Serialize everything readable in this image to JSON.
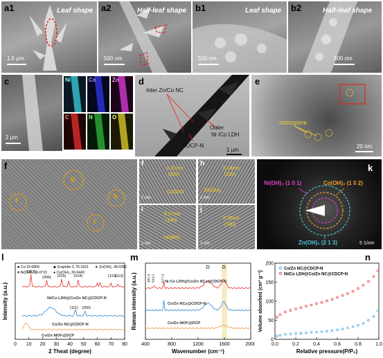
{
  "panels": {
    "a1": {
      "label": "a1",
      "caption": "Leaf shape",
      "scale": "1.5 μm"
    },
    "a2": {
      "label": "a2",
      "caption": "Half-leaf shape",
      "scale": "500 nm"
    },
    "b1": {
      "label": "b1",
      "caption": "Leaf shape",
      "scale": "500 nm"
    },
    "b2": {
      "label": "b2",
      "caption": "Half-leaf shape",
      "scale": "500 nm"
    },
    "c": {
      "label": "c",
      "scale": "2 μm",
      "maps": [
        "Ni",
        "Co",
        "Zn",
        "C",
        "N",
        "O"
      ]
    },
    "d": {
      "label": "d",
      "scale": "1 μm",
      "annotations": [
        "Inter Zn/Co NC",
        "Outer",
        "Ni /Co LDH",
        "CDCP-N"
      ]
    },
    "e": {
      "label": "e",
      "scale": "20 nm",
      "annotations": [
        "micropore"
      ]
    },
    "f": {
      "label": "f",
      "circles": [
        "f",
        "g",
        "h",
        "i"
      ]
    },
    "f_insets": [
      {
        "label": "f",
        "lattice": "0.21nm",
        "plane": "(002)",
        "phase": "Co/ZnO",
        "scale": "1 nm"
      },
      {
        "label": "h",
        "lattice": "0.18nm",
        "plane": "(102)",
        "phase": "Zn(OH)₂",
        "scale": "1 nm"
      },
      {
        "label": "i",
        "lattice": "0.27nm",
        "plane": "(100)",
        "phase": "Ni(OH)₂",
        "scale": "1 nm"
      },
      {
        "label": "j",
        "lattice": "0.36nm",
        "plane": "(100)",
        "phase": "",
        "scale": "1 nm"
      }
    ],
    "k": {
      "label": "k",
      "rings": [
        "Ni(OH)₂ (1 0 1)",
        "Co(OH)₂ (1 0 2)",
        "Zn(OH)₂ (2 1 3)"
      ],
      "scale": "5 1/nm"
    }
  },
  "chart_data": [
    {
      "type": "line",
      "panel": "l",
      "xlabel": "2 Theat (degree)",
      "ylabel": "Intensity (a.u.)",
      "xlim": [
        0,
        80
      ],
      "xticks": [
        0,
        10,
        20,
        30,
        40,
        50,
        60,
        70,
        80
      ],
      "legend": [
        "♣ Co:15-0806",
        "◆ Graphite C  75-1621",
        "★ Zn(OH)₂ 38-0356",
        "♥ Ni(OH)₂ 38-0715",
        "● Co(OH)₂ 30-0443"
      ],
      "series": [
        {
          "name": "Ni/Co LDH@Co/Zn NC@CDCP-N",
          "color": "#e8403c"
        },
        {
          "name": "Co/Zn NC@CDCP-N",
          "color": "#3f8fd0"
        },
        {
          "name": "Co/Zn MOF@DCP",
          "color": "#f0a35c"
        }
      ],
      "peak_labels": [
        "(003)",
        "(006)",
        "(015)",
        "(018)",
        "(110)",
        "(113)",
        "(111)",
        "(200)"
      ]
    },
    {
      "type": "line",
      "panel": "m",
      "xlabel": "Wavenumber (cm⁻¹)",
      "ylabel": "Raman intensity (a.u.)",
      "xlim": [
        400,
        2000
      ],
      "xticks": [
        400,
        800,
        1200,
        1600,
        2000
      ],
      "bands": [
        "D",
        "G"
      ],
      "peak_labels": [
        "461.3",
        "533.2",
        "677.3"
      ],
      "series": [
        {
          "name": "Ni Co LDH@Co/Zn NCs@CDCP-N",
          "color": "#e8403c"
        },
        {
          "name": "Co/Zn NCs@CDCP-N",
          "color": "#3f8fd0"
        },
        {
          "name": "Co/Zn MOF@DCP",
          "color": "#f0a35c"
        }
      ]
    },
    {
      "type": "scatter",
      "panel": "n",
      "xlabel": "Relative pressure(P/P₀)",
      "ylabel": "Volume absorbed (cm³ g⁻¹)",
      "xlim": [
        0.0,
        1.0
      ],
      "ylim": [
        0,
        200
      ],
      "xticks": [
        0.0,
        0.2,
        0.4,
        0.6,
        0.8,
        1.0
      ],
      "yticks": [
        0,
        50,
        100,
        150,
        200
      ],
      "series": [
        {
          "name": "Co/Zn NC@CDCP-N",
          "color": "#4aa8e0",
          "x": [
            0.02,
            0.05,
            0.1,
            0.15,
            0.2,
            0.25,
            0.3,
            0.35,
            0.4,
            0.45,
            0.5,
            0.55,
            0.6,
            0.65,
            0.7,
            0.75,
            0.8,
            0.85,
            0.9,
            0.95,
            0.99
          ],
          "y": [
            8,
            11,
            13,
            14,
            15,
            16,
            17,
            18,
            19,
            20,
            21,
            23,
            25,
            27,
            30,
            33,
            37,
            42,
            50,
            60,
            75
          ]
        },
        {
          "name": "Ni/Co LDH@Co/Zn NC@CDCP-N",
          "color": "#e8403c",
          "x": [
            0.02,
            0.05,
            0.1,
            0.15,
            0.2,
            0.25,
            0.3,
            0.35,
            0.4,
            0.45,
            0.5,
            0.55,
            0.6,
            0.65,
            0.7,
            0.75,
            0.8,
            0.85,
            0.9,
            0.95,
            0.99
          ],
          "y": [
            58,
            65,
            72,
            76,
            80,
            83,
            87,
            90,
            94,
            97,
            101,
            105,
            110,
            115,
            120,
            126,
            133,
            142,
            152,
            165,
            180
          ]
        }
      ]
    }
  ],
  "labels": {
    "l": "l",
    "m": "m",
    "n": "n"
  }
}
